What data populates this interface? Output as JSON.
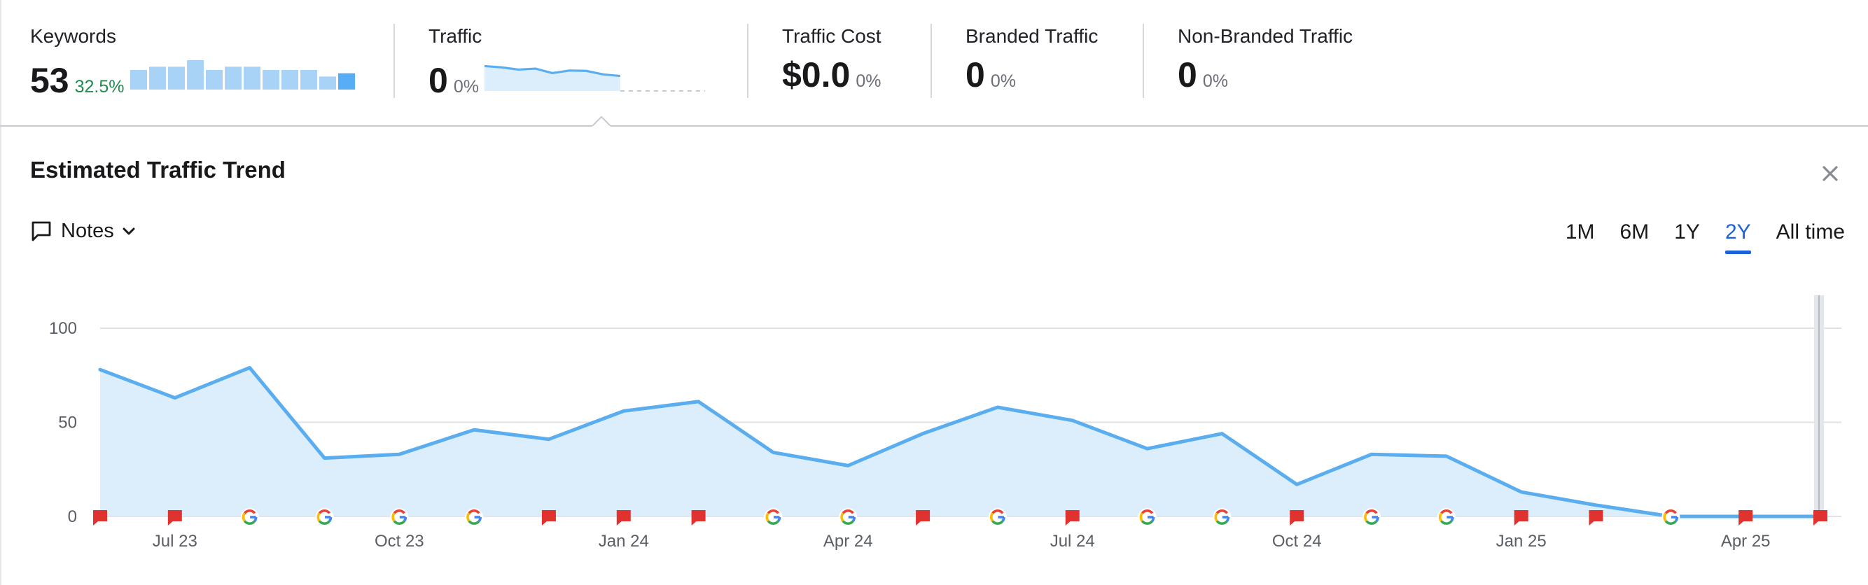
{
  "metrics": {
    "keywords": {
      "label": "Keywords",
      "value": "53",
      "change": "32.5%",
      "trend": [
        6,
        7,
        7,
        9,
        6,
        7,
        7,
        6,
        6,
        6,
        4,
        5
      ]
    },
    "traffic": {
      "label": "Traffic",
      "value": "0",
      "change": "0%",
      "trend": [
        78,
        74,
        67,
        70,
        56,
        64,
        63,
        52,
        47,
        0,
        0,
        0,
        0,
        0
      ]
    },
    "traffic_cost": {
      "label": "Traffic Cost",
      "value": "$0.0",
      "change": "0%"
    },
    "branded_traffic": {
      "label": "Branded Traffic",
      "value": "0",
      "change": "0%"
    },
    "non_branded_traffic": {
      "label": "Non-Branded Traffic",
      "value": "0",
      "change": "0%"
    }
  },
  "panel": {
    "title": "Estimated Traffic Trend",
    "notes_label": "Notes",
    "close_icon": "close-icon",
    "notes_icon": "comment-icon",
    "range_tabs": [
      "1M",
      "6M",
      "1Y",
      "2Y",
      "All time"
    ],
    "active_range": "2Y"
  },
  "colors": {
    "line": "#5aaef0",
    "area": "#dcedfb",
    "note_flag": "#e0322f",
    "accent": "#1d62d8",
    "keywords_bar": "#a9d3f6",
    "keywords_bar_last": "#58aef4"
  },
  "chart_data": {
    "type": "area",
    "title": "",
    "xlabel": "",
    "ylabel": "",
    "ylim": [
      0,
      100
    ],
    "yticks": [
      0,
      50,
      100
    ],
    "grid": true,
    "x_tick_labels": [
      {
        "label": "Jul 23",
        "index": 1
      },
      {
        "label": "Oct 23",
        "index": 4
      },
      {
        "label": "Jan 24",
        "index": 7
      },
      {
        "label": "Apr 24",
        "index": 10
      },
      {
        "label": "Jul 24",
        "index": 13
      },
      {
        "label": "Oct 24",
        "index": 16
      },
      {
        "label": "Jan 25",
        "index": 19
      },
      {
        "label": "Apr 25",
        "index": 22
      }
    ],
    "x": [
      "Jun 23",
      "Jul 23",
      "Aug 23",
      "Sep 23",
      "Oct 23",
      "Nov 23",
      "Dec 23",
      "Jan 24",
      "Feb 24",
      "Mar 24",
      "Apr 24",
      "May 24",
      "Jun 24",
      "Jul 24",
      "Aug 24",
      "Sep 24",
      "Oct 24",
      "Nov 24",
      "Dec 24",
      "Jan 25",
      "Feb 25",
      "Mar 25",
      "Apr 25",
      "May 25"
    ],
    "series": [
      {
        "values": [
          78,
          63,
          79,
          31,
          33,
          46,
          41,
          56,
          61,
          34,
          27,
          44,
          58,
          51,
          36,
          44,
          17,
          33,
          32,
          13,
          6,
          0,
          0,
          0
        ]
      }
    ],
    "event_markers": [
      "note",
      "note",
      "google",
      "google",
      "google",
      "google",
      "note",
      "note",
      "note",
      "google",
      "google",
      "note",
      "google",
      "note",
      "google",
      "google",
      "note",
      "google",
      "google",
      "note",
      "note",
      "google",
      "note",
      "note"
    ]
  }
}
